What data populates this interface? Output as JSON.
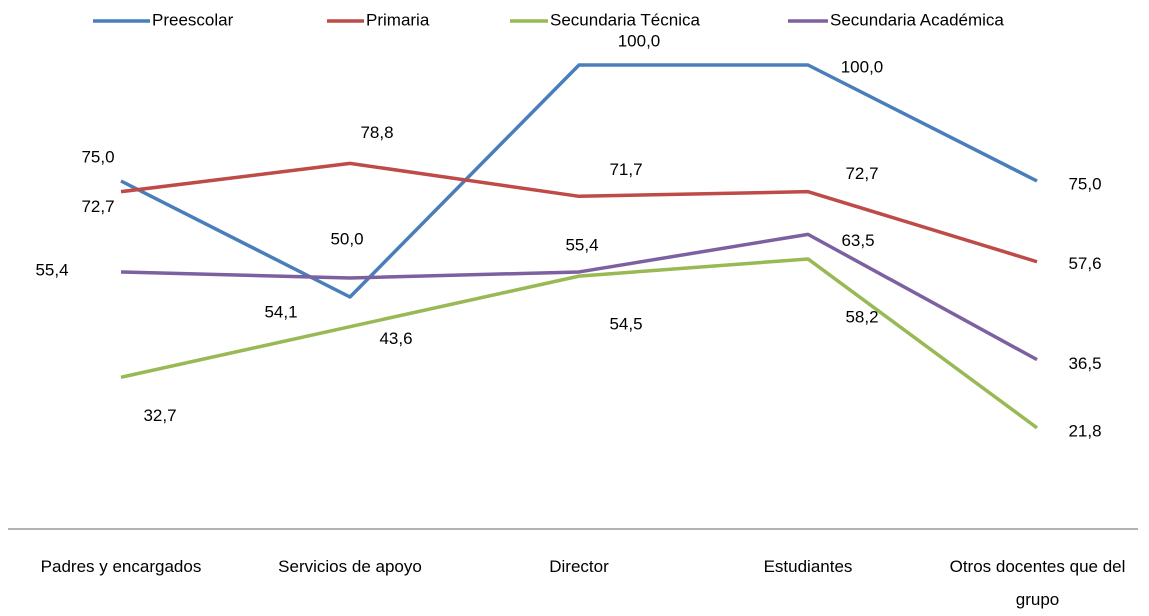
{
  "chart_data": {
    "type": "line",
    "categories": [
      "Padres y encargados",
      "Servicios de apoyo",
      "Director",
      "Estudiantes",
      "Otros docentes que del grupo"
    ],
    "ylim": [
      0,
      100
    ],
    "series": [
      {
        "name": "Preescolar",
        "color": "#4a7ebb",
        "values": [
          75.0,
          50.0,
          100.0,
          100.0,
          75.0
        ],
        "value_labels": [
          "75,0",
          "50,0",
          "100,0",
          "100,0",
          "75,0"
        ]
      },
      {
        "name": "Primaria",
        "color": "#be4b48",
        "values": [
          72.7,
          78.8,
          71.7,
          72.7,
          57.6
        ],
        "value_labels": [
          "72,7",
          "78,8",
          "71,7",
          "72,7",
          "57,6"
        ]
      },
      {
        "name": "Secundaria Técnica",
        "color": "#98b954",
        "values": [
          32.7,
          43.6,
          54.5,
          58.2,
          21.8
        ],
        "value_labels": [
          "32,7",
          "43,6",
          "54,5",
          "58,2",
          "21,8"
        ]
      },
      {
        "name": "Secundaria Académica",
        "color": "#7d60a0",
        "values": [
          55.4,
          54.1,
          55.4,
          63.5,
          36.5
        ],
        "value_labels": [
          "55,4",
          "54,1",
          "55,4",
          "63,5",
          "36,5"
        ]
      }
    ]
  }
}
